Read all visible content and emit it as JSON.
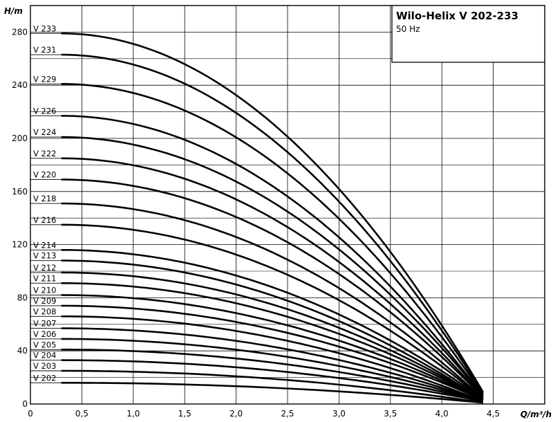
{
  "chart_data": {
    "type": "line",
    "title": "Wilo-Helix V 202-233",
    "subtitle": "50 Hz",
    "xlabel": "Q/m³/h",
    "ylabel": "H/m",
    "xlim": [
      0,
      5.0
    ],
    "ylim": [
      0,
      300
    ],
    "xticks": [
      "0",
      "0,5",
      "1,0",
      "1,5",
      "2,0",
      "2,5",
      "3,0",
      "3,5",
      "4,0",
      "4,5"
    ],
    "xtick_values": [
      0,
      0.5,
      1.0,
      1.5,
      2.0,
      2.5,
      3.0,
      3.5,
      4.0,
      4.5
    ],
    "yticks": [
      "0",
      "40",
      "80",
      "120",
      "160",
      "200",
      "240",
      "280"
    ],
    "ytick_values": [
      0,
      40,
      80,
      120,
      160,
      200,
      240,
      280
    ],
    "grid": true,
    "x_start": 0.3,
    "x_end": 4.4,
    "series": [
      {
        "name": "V 202",
        "h0": 16,
        "h_end": 1
      },
      {
        "name": "V 203",
        "h0": 25,
        "h_end": 1
      },
      {
        "name": "V 204",
        "h0": 33,
        "h_end": 2
      },
      {
        "name": "V 205",
        "h0": 41,
        "h_end": 2
      },
      {
        "name": "V 206",
        "h0": 49,
        "h_end": 2
      },
      {
        "name": "V 207",
        "h0": 57,
        "h_end": 2
      },
      {
        "name": "V 208",
        "h0": 66,
        "h_end": 2
      },
      {
        "name": "V 209",
        "h0": 74,
        "h_end": 3
      },
      {
        "name": "V 210",
        "h0": 82,
        "h_end": 3
      },
      {
        "name": "V 211",
        "h0": 91,
        "h_end": 3
      },
      {
        "name": "V 212",
        "h0": 99,
        "h_end": 3
      },
      {
        "name": "V 213",
        "h0": 108,
        "h_end": 3
      },
      {
        "name": "V 214",
        "h0": 116,
        "h_end": 4
      },
      {
        "name": "V 216",
        "h0": 135,
        "h_end": 4
      },
      {
        "name": "V 218",
        "h0": 151,
        "h_end": 4
      },
      {
        "name": "V 220",
        "h0": 169,
        "h_end": 5
      },
      {
        "name": "V 222",
        "h0": 185,
        "h_end": 5
      },
      {
        "name": "V 224",
        "h0": 201,
        "h_end": 6
      },
      {
        "name": "V 226",
        "h0": 217,
        "h_end": 6
      },
      {
        "name": "V 229",
        "h0": 241,
        "h_end": 7
      },
      {
        "name": "V 231",
        "h0": 263,
        "h_end": 8
      },
      {
        "name": "V 233",
        "h0": 279,
        "h_end": 9
      }
    ]
  }
}
